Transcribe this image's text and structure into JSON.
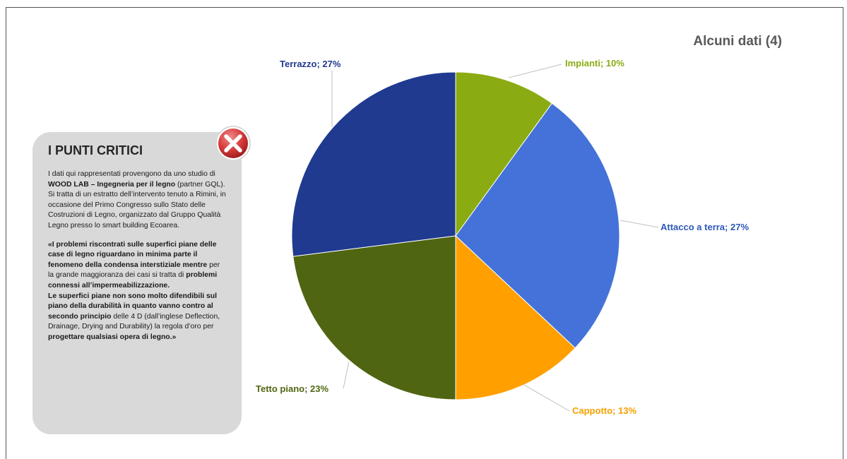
{
  "slide": {
    "title": "Alcuni dati (4)"
  },
  "panel": {
    "heading": "I PUNTI CRITICI",
    "intro": [
      {
        "t": "I dati qui rappresentati provengono da uno studio di ",
        "b": false
      },
      {
        "t": "WOOD LAB – Ingegneria per il legno",
        "b": true
      },
      {
        "t": " (partner GQL). Si tratta di un estratto dell’intervento tenuto a Rimini, in occasione del Primo Congresso sullo Stato delle Costruzioni di Legno, organizzato dal Gruppo Qualità Legno presso lo smart building Ecoarea.",
        "b": false
      }
    ],
    "quote": [
      {
        "t": "«I problemi riscontrati sulle superfici piane delle case di legno riguardano in minima parte il fenomeno della condensa interstiziale mentre ",
        "b": true
      },
      {
        "t": "per la grande maggioranza dei casi si tratta di ",
        "b": false
      },
      {
        "t": "problemi connessi all’impermeabilizzazione.",
        "b": true
      },
      {
        "t": "\n",
        "b": false
      },
      {
        "t": "Le superfici piane non sono molto difendibili sul piano della durabilità in quanto vanno contro al secondo principio ",
        "b": true
      },
      {
        "t": "delle 4 D (dall’inglese Deflection, Drainage, Drying and Durability) la regola d’oro per ",
        "b": false
      },
      {
        "t": "progettare qualsiasi opera di legno.»",
        "b": true
      }
    ],
    "badge_icon": "close-x-icon"
  },
  "chart_data": {
    "type": "pie",
    "title": "",
    "slices": [
      {
        "label": "Impianti; 10%",
        "value": 10,
        "color": "#8aab12",
        "label_color": "#8aab12"
      },
      {
        "label": "Attacco a terra; 27%",
        "value": 27,
        "color": "#4472d8",
        "label_color": "#2e58b8"
      },
      {
        "label": "Cappotto; 13%",
        "value": 13,
        "color": "#ffa000",
        "label_color": "#f5a000"
      },
      {
        "label": "Tetto piano; 23%",
        "value": 23,
        "color": "#4f6511",
        "label_color": "#4f6511"
      },
      {
        "label": "Terrazzo; 27%",
        "value": 27,
        "color": "#1f3a8f",
        "label_color": "#1f3a8f"
      }
    ],
    "start_angle_deg": 0,
    "direction": "clockwise"
  }
}
